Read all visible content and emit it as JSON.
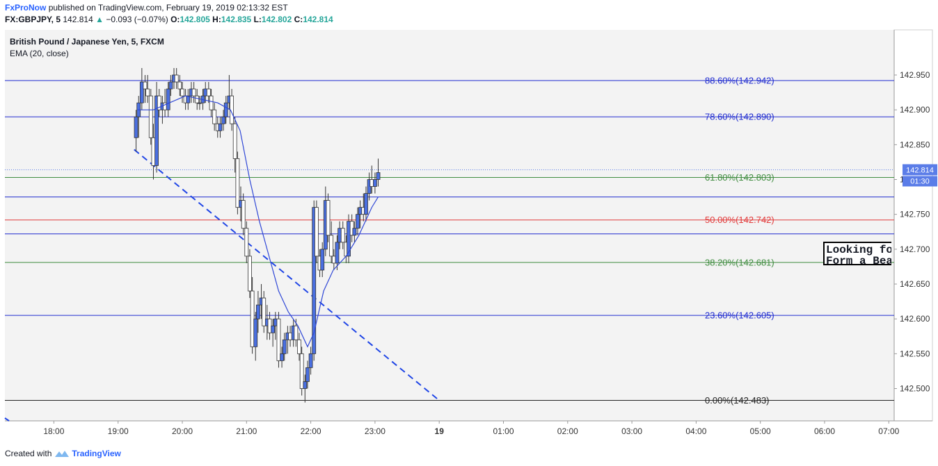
{
  "header": {
    "brand": "FxProNow",
    "published": "published on TradingView.com, February 19, 2019 02:13:32 EST",
    "symbol": "FX:GBPJPY, 5",
    "last": "142.814",
    "change": "−0.093 (−0.07%)",
    "o_label": "O:",
    "o": "142.805",
    "h_label": "H:",
    "h": "142.835",
    "l_label": "L:",
    "l": "142.802",
    "c_label": "C:",
    "c": "142.814"
  },
  "legend": {
    "instrument": "British Pound / Japanese Yen, 5, FXCM",
    "indicator": "EMA (20, close)"
  },
  "annotation": {
    "line1": "Looking for",
    "line2": "Form a Bear"
  },
  "footer": {
    "created": "Created with",
    "brand": "TradingView"
  },
  "colors": {
    "bull": "#4a6fe0",
    "bear": "#ffffff",
    "ema": "#2f47d6",
    "fib_blue": "#1f2bd0",
    "fib_green": "#3f8c3f",
    "fib_red": "#e23b3b",
    "trend": "#1f45e6",
    "price_tag": "#5b7de8"
  },
  "chart_data": {
    "type": "candlestick",
    "title": "British Pound / Japanese Yen, 5, FXCM",
    "ylim": [
      142.45,
      142.98
    ],
    "y_ticks": [
      "142.950",
      "142.900",
      "142.850",
      "142.800",
      "142.750",
      "142.700",
      "142.650",
      "142.600",
      "142.550",
      "142.500"
    ],
    "x_ticks": [
      "18:00",
      "19:00",
      "20:00",
      "21:00",
      "22:00",
      "23:00",
      "19",
      "01:00",
      "02:00",
      "03:00",
      "04:00",
      "05:00",
      "06:00",
      "07:00"
    ],
    "last_price": "142.814",
    "countdown": "01:30",
    "fib_levels": [
      {
        "label": "88.60%(142.942)",
        "value": 142.942,
        "kind": "blue"
      },
      {
        "label": "78.60%(142.890)",
        "value": 142.89,
        "kind": "blue"
      },
      {
        "label": "61.80%(142.803)",
        "value": 142.803,
        "kind": "green"
      },
      {
        "label": "",
        "value": 142.775,
        "kind": "blue"
      },
      {
        "label": "50.00%(142.742)",
        "value": 142.742,
        "kind": "red"
      },
      {
        "label": "",
        "value": 142.722,
        "kind": "blue"
      },
      {
        "label": "38.20%(142.681)",
        "value": 142.681,
        "kind": "green"
      },
      {
        "label": "23.60%(142.605)",
        "value": 142.605,
        "kind": "blue"
      },
      {
        "label": "0.00%(142.483)",
        "value": 142.483,
        "kind": "black"
      }
    ],
    "trendline": [
      [
        -0.75,
        142.843
      ],
      [
        4.0,
        142.483
      ]
    ],
    "candles": [
      [
        -0.72,
        142.86,
        142.9,
        142.84,
        142.89
      ],
      [
        -0.68,
        142.89,
        142.92,
        142.86,
        142.91
      ],
      [
        -0.63,
        142.91,
        142.96,
        142.9,
        142.94
      ],
      [
        -0.58,
        142.94,
        142.95,
        142.91,
        142.93
      ],
      [
        -0.54,
        142.93,
        142.95,
        142.91,
        142.92
      ],
      [
        -0.49,
        142.92,
        142.93,
        142.85,
        142.86
      ],
      [
        -0.45,
        142.86,
        142.88,
        142.8,
        142.82
      ],
      [
        -0.4,
        142.82,
        142.94,
        142.81,
        142.92
      ],
      [
        -0.36,
        142.92,
        142.93,
        142.89,
        142.9
      ],
      [
        -0.31,
        142.9,
        142.92,
        142.88,
        142.91
      ],
      [
        -0.27,
        142.91,
        142.93,
        142.89,
        142.9
      ],
      [
        -0.22,
        142.9,
        142.94,
        142.89,
        142.93
      ],
      [
        -0.18,
        142.93,
        142.95,
        142.92,
        142.94
      ],
      [
        -0.13,
        142.94,
        142.96,
        142.93,
        142.95
      ],
      [
        -0.09,
        142.95,
        142.96,
        142.93,
        142.94
      ],
      [
        -0.04,
        142.94,
        142.95,
        142.92,
        142.93
      ],
      [
        0.0,
        142.93,
        142.94,
        142.91,
        142.92
      ],
      [
        0.05,
        142.92,
        142.93,
        142.9,
        142.91
      ],
      [
        0.09,
        142.91,
        142.93,
        142.9,
        142.92
      ],
      [
        0.14,
        142.92,
        142.94,
        142.91,
        142.93
      ],
      [
        0.18,
        142.93,
        142.94,
        142.91,
        142.92
      ],
      [
        0.23,
        142.92,
        142.93,
        142.9,
        142.91
      ],
      [
        0.27,
        142.91,
        142.92,
        142.9,
        142.91
      ],
      [
        0.32,
        142.91,
        142.93,
        142.9,
        142.92
      ],
      [
        0.36,
        142.92,
        142.94,
        142.91,
        142.93
      ],
      [
        0.41,
        142.93,
        142.94,
        142.91,
        142.92
      ],
      [
        0.45,
        142.92,
        142.93,
        142.89,
        142.9
      ],
      [
        0.5,
        142.9,
        142.91,
        142.87,
        142.88
      ],
      [
        0.55,
        142.88,
        142.89,
        142.86,
        142.87
      ],
      [
        0.59,
        142.87,
        142.89,
        142.86,
        142.88
      ],
      [
        0.64,
        142.88,
        142.9,
        142.87,
        142.89
      ],
      [
        0.68,
        142.89,
        142.92,
        142.88,
        142.91
      ],
      [
        0.73,
        142.91,
        142.95,
        142.9,
        142.92
      ],
      [
        0.77,
        142.92,
        142.93,
        142.87,
        142.88
      ],
      [
        0.82,
        142.88,
        142.89,
        142.81,
        142.83
      ],
      [
        0.86,
        142.83,
        142.84,
        142.75,
        142.76
      ],
      [
        0.91,
        142.76,
        142.79,
        142.74,
        142.77
      ],
      [
        0.95,
        142.77,
        142.78,
        142.72,
        142.73
      ],
      [
        1.0,
        142.73,
        142.74,
        142.68,
        142.69
      ],
      [
        1.05,
        142.69,
        142.7,
        142.63,
        142.64
      ],
      [
        1.09,
        142.64,
        142.66,
        142.55,
        142.56
      ],
      [
        1.14,
        142.56,
        142.61,
        142.54,
        142.6
      ],
      [
        1.18,
        142.6,
        142.64,
        142.58,
        142.62
      ],
      [
        1.23,
        142.62,
        142.65,
        142.6,
        142.63
      ],
      [
        1.27,
        142.63,
        142.64,
        142.58,
        142.59
      ],
      [
        1.32,
        142.59,
        142.62,
        142.57,
        142.6
      ],
      [
        1.36,
        142.6,
        142.61,
        142.57,
        142.58
      ],
      [
        1.41,
        142.58,
        142.6,
        142.56,
        142.59
      ],
      [
        1.45,
        142.59,
        142.61,
        142.57,
        142.6
      ],
      [
        1.5,
        142.6,
        142.61,
        142.53,
        142.54
      ],
      [
        1.55,
        142.54,
        142.56,
        142.53,
        142.55
      ],
      [
        1.59,
        142.55,
        142.58,
        142.54,
        142.57
      ],
      [
        1.64,
        142.57,
        142.59,
        142.55,
        142.58
      ],
      [
        1.68,
        142.58,
        142.59,
        142.56,
        142.57
      ],
      [
        1.73,
        142.57,
        142.6,
        142.56,
        142.59
      ],
      [
        1.77,
        142.59,
        142.6,
        142.56,
        142.57
      ],
      [
        1.82,
        142.57,
        142.58,
        142.54,
        142.55
      ],
      [
        1.86,
        142.55,
        142.56,
        142.49,
        142.5
      ],
      [
        1.91,
        142.5,
        142.52,
        142.48,
        142.51
      ],
      [
        1.95,
        142.51,
        142.54,
        142.5,
        142.53
      ],
      [
        2.0,
        142.53,
        142.56,
        142.52,
        142.55
      ],
      [
        2.05,
        142.55,
        142.77,
        142.54,
        142.76
      ],
      [
        2.09,
        142.76,
        142.77,
        142.68,
        142.69
      ],
      [
        2.14,
        142.69,
        142.7,
        142.66,
        142.67
      ],
      [
        2.18,
        142.67,
        142.71,
        142.66,
        142.7
      ],
      [
        2.23,
        142.7,
        142.79,
        142.69,
        142.77
      ],
      [
        2.27,
        142.77,
        142.78,
        142.71,
        142.72
      ],
      [
        2.32,
        142.72,
        142.74,
        142.68,
        142.69
      ],
      [
        2.36,
        142.69,
        142.7,
        142.67,
        142.68
      ],
      [
        2.41,
        142.68,
        142.72,
        142.67,
        142.71
      ],
      [
        2.45,
        142.71,
        142.74,
        142.7,
        142.73
      ],
      [
        2.5,
        142.73,
        142.74,
        142.7,
        142.71
      ],
      [
        2.55,
        142.71,
        142.72,
        142.68,
        142.69
      ],
      [
        2.59,
        142.69,
        142.75,
        142.68,
        142.74
      ],
      [
        2.64,
        142.74,
        142.75,
        142.71,
        142.72
      ],
      [
        2.68,
        142.72,
        142.74,
        142.71,
        142.73
      ],
      [
        2.73,
        142.73,
        142.76,
        142.72,
        142.75
      ],
      [
        2.77,
        142.75,
        142.77,
        142.73,
        142.76
      ],
      [
        2.82,
        142.76,
        142.78,
        142.74,
        142.75
      ],
      [
        2.86,
        142.75,
        142.79,
        142.74,
        142.78
      ],
      [
        2.91,
        142.78,
        142.81,
        142.77,
        142.8
      ],
      [
        2.95,
        142.8,
        142.82,
        142.78,
        142.79
      ],
      [
        3.0,
        142.79,
        142.81,
        142.78,
        142.8
      ],
      [
        3.05,
        142.8,
        142.83,
        142.79,
        142.81
      ]
    ],
    "ema": [
      [
        -0.7,
        142.9
      ],
      [
        -0.45,
        142.9
      ],
      [
        -0.2,
        142.91
      ],
      [
        0.05,
        142.92
      ],
      [
        0.3,
        142.915
      ],
      [
        0.55,
        142.91
      ],
      [
        0.75,
        142.9
      ],
      [
        0.9,
        142.87
      ],
      [
        1.05,
        142.8
      ],
      [
        1.2,
        142.74
      ],
      [
        1.35,
        142.69
      ],
      [
        1.5,
        142.64
      ],
      [
        1.65,
        142.61
      ],
      [
        1.8,
        142.59
      ],
      [
        1.95,
        142.56
      ],
      [
        2.05,
        142.58
      ],
      [
        2.2,
        142.64
      ],
      [
        2.35,
        142.67
      ],
      [
        2.55,
        142.69
      ],
      [
        2.75,
        142.72
      ],
      [
        2.95,
        142.76
      ],
      [
        3.05,
        142.775
      ]
    ]
  }
}
